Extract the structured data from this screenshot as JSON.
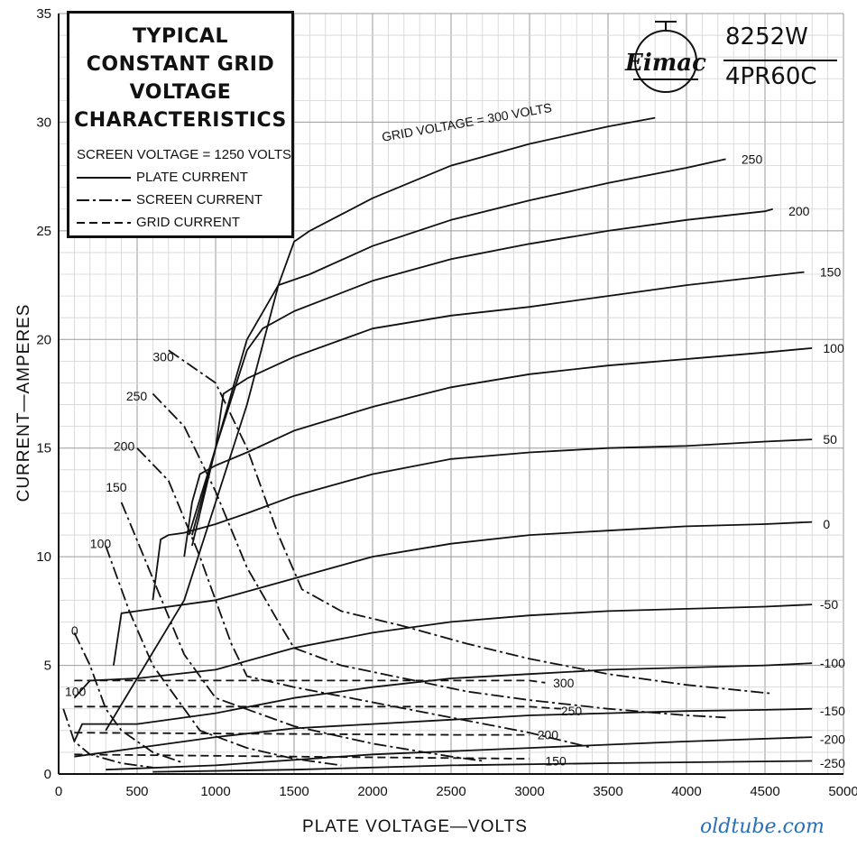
{
  "chart_data": {
    "type": "line",
    "title": "TYPICAL CONSTANT GRID VOLTAGE CHARACTERISTICS",
    "subtitle": "SCREEN VOLTAGE = 1250 VOLTS",
    "xlabel": "PLATE VOLTAGE—VOLTS",
    "ylabel": "CURRENT—AMPERES",
    "xlim": [
      0,
      5000
    ],
    "ylim": [
      0,
      35
    ],
    "x_ticks": [
      "0",
      "500",
      "1000",
      "1500",
      "2000",
      "2500",
      "3000",
      "3500",
      "4000",
      "4500",
      "5000"
    ],
    "y_ticks": [
      "0",
      "5",
      "10",
      "15",
      "20",
      "25",
      "30",
      "35"
    ],
    "grid": true,
    "legend_position": "top-left",
    "legend": [
      {
        "label": "PLATE CURRENT",
        "style": "solid"
      },
      {
        "label": "SCREEN CURRENT",
        "style": "dash-dot"
      },
      {
        "label": "GRID CURRENT",
        "style": "dashed"
      }
    ],
    "series": [
      {
        "name": "GRID VOLTAGE = 300 VOLTS",
        "kind": "plate",
        "grid_voltage": 300,
        "x": [
          300,
          800,
          1200,
          1400,
          1500,
          1600,
          2000,
          2500,
          3000,
          3500,
          3800
        ],
        "y": [
          2.0,
          8.0,
          17.0,
          22.5,
          24.5,
          25.0,
          26.5,
          28.0,
          29.0,
          29.8,
          30.2
        ]
      },
      {
        "name": "250",
        "kind": "plate",
        "grid_voltage": 250,
        "x": [
          850,
          1000,
          1200,
          1400,
          1600,
          2000,
          2500,
          3000,
          3500,
          4000,
          4250
        ],
        "y": [
          10.5,
          15.0,
          20.0,
          22.5,
          23.0,
          24.3,
          25.5,
          26.4,
          27.2,
          27.9,
          28.3
        ]
      },
      {
        "name": "200",
        "kind": "plate",
        "grid_voltage": 200,
        "x": [
          850,
          1000,
          1200,
          1300,
          1500,
          2000,
          2500,
          3000,
          3500,
          4000,
          4500,
          4550
        ],
        "y": [
          11.0,
          15.0,
          19.5,
          20.5,
          21.3,
          22.7,
          23.7,
          24.4,
          25.0,
          25.5,
          25.9,
          26.0
        ]
      },
      {
        "name": "150",
        "kind": "plate",
        "grid_voltage": 150,
        "x": [
          830,
          1000,
          1050,
          1200,
          1500,
          2000,
          2500,
          3000,
          3500,
          4000,
          4500,
          4750
        ],
        "y": [
          11.0,
          15.0,
          17.5,
          18.2,
          19.2,
          20.5,
          21.1,
          21.5,
          22.0,
          22.5,
          22.9,
          23.1
        ]
      },
      {
        "name": "100",
        "kind": "plate",
        "grid_voltage": 100,
        "x": [
          800,
          850,
          900,
          1000,
          1200,
          1500,
          2000,
          2500,
          3000,
          3500,
          4000,
          4500,
          4800
        ],
        "y": [
          10.0,
          12.5,
          13.8,
          14.2,
          14.8,
          15.8,
          16.9,
          17.8,
          18.4,
          18.8,
          19.1,
          19.4,
          19.6
        ]
      },
      {
        "name": "50",
        "kind": "plate",
        "grid_voltage": 50,
        "x": [
          600,
          650,
          700,
          800,
          1000,
          1200,
          1500,
          2000,
          2500,
          3000,
          3500,
          4000,
          4500,
          4800
        ],
        "y": [
          8.0,
          10.8,
          11.0,
          11.1,
          11.5,
          12.0,
          12.8,
          13.8,
          14.5,
          14.8,
          15.0,
          15.1,
          15.3,
          15.4
        ]
      },
      {
        "name": "0",
        "kind": "plate",
        "grid_voltage": 0,
        "x": [
          350,
          400,
          500,
          1000,
          1500,
          2000,
          2500,
          3000,
          3500,
          4000,
          4500,
          4800
        ],
        "y": [
          5.0,
          7.4,
          7.5,
          8.0,
          9.0,
          10.0,
          10.6,
          11.0,
          11.2,
          11.4,
          11.5,
          11.6
        ]
      },
      {
        "name": "-50",
        "kind": "plate",
        "grid_voltage": -50,
        "x": [
          100,
          200,
          500,
          1000,
          1500,
          2000,
          2500,
          3000,
          3500,
          4000,
          4500,
          4800
        ],
        "y": [
          3.5,
          4.3,
          4.4,
          4.8,
          5.8,
          6.5,
          7.0,
          7.3,
          7.5,
          7.6,
          7.7,
          7.8
        ]
      },
      {
        "name": "-100",
        "kind": "plate",
        "grid_voltage": -100,
        "x": [
          100,
          150,
          500,
          1000,
          1500,
          2000,
          2500,
          3000,
          3500,
          4000,
          4500,
          4800
        ],
        "y": [
          1.5,
          2.3,
          2.3,
          2.8,
          3.5,
          4.0,
          4.4,
          4.6,
          4.8,
          4.9,
          5.0,
          5.1
        ]
      },
      {
        "name": "-150",
        "kind": "plate",
        "grid_voltage": -150,
        "x": [
          100,
          500,
          1000,
          1500,
          2000,
          2500,
          3000,
          3500,
          4000,
          4500,
          4800
        ],
        "y": [
          0.8,
          1.2,
          1.7,
          2.1,
          2.3,
          2.5,
          2.7,
          2.8,
          2.9,
          2.95,
          3.0
        ]
      },
      {
        "name": "-200",
        "kind": "plate",
        "grid_voltage": -200,
        "x": [
          300,
          1000,
          2000,
          3000,
          4000,
          4800
        ],
        "y": [
          0.2,
          0.4,
          0.9,
          1.2,
          1.5,
          1.7
        ]
      },
      {
        "name": "-250",
        "kind": "plate",
        "grid_voltage": -250,
        "x": [
          600,
          1500,
          2500,
          3500,
          4800
        ],
        "y": [
          0.1,
          0.2,
          0.4,
          0.5,
          0.6
        ]
      },
      {
        "name": "300",
        "kind": "screen",
        "grid_voltage": 300,
        "x": [
          700,
          1000,
          1200,
          1400,
          1550,
          1800,
          2200,
          2600,
          3000,
          3500,
          4000,
          4550
        ],
        "y": [
          19.5,
          18.0,
          15.0,
          11.0,
          8.5,
          7.5,
          6.8,
          6.0,
          5.3,
          4.6,
          4.1,
          3.7
        ]
      },
      {
        "name": "250",
        "kind": "screen",
        "grid_voltage": 250,
        "x": [
          600,
          800,
          1000,
          1200,
          1400,
          1500,
          1800,
          2200,
          2600,
          3000,
          3500,
          4000,
          4250
        ],
        "y": [
          17.5,
          16.0,
          13.0,
          9.5,
          7.0,
          5.8,
          5.0,
          4.4,
          3.8,
          3.4,
          3.0,
          2.7,
          2.6
        ]
      },
      {
        "name": "200",
        "kind": "screen",
        "grid_voltage": 200,
        "x": [
          500,
          700,
          900,
          1100,
          1200,
          1500,
          2000,
          2500,
          3000,
          3400
        ],
        "y": [
          15.0,
          13.5,
          10.0,
          6.0,
          4.5,
          4.0,
          3.3,
          2.6,
          1.9,
          1.2
        ]
      },
      {
        "name": "150",
        "kind": "screen",
        "grid_voltage": 150,
        "x": [
          400,
          600,
          800,
          1000,
          1500,
          2000,
          2500,
          2700
        ],
        "y": [
          12.5,
          9.0,
          5.5,
          3.5,
          2.2,
          1.4,
          0.8,
          0.6
        ]
      },
      {
        "name": "100",
        "kind": "screen",
        "grid_voltage": 100,
        "x": [
          300,
          450,
          600,
          900,
          1200,
          1500,
          1800
        ],
        "y": [
          10.5,
          7.5,
          5.0,
          2.0,
          1.2,
          0.7,
          0.4
        ]
      },
      {
        "name": "0",
        "kind": "screen",
        "grid_voltage": 0,
        "x": [
          100,
          200,
          300,
          400,
          600,
          800
        ],
        "y": [
          6.5,
          5.0,
          3.0,
          2.0,
          1.0,
          0.5
        ]
      },
      {
        "name": "-100",
        "kind": "screen",
        "grid_voltage": -100,
        "x": [
          30,
          100,
          200,
          400,
          600
        ],
        "y": [
          3.0,
          1.5,
          0.9,
          0.5,
          0.3
        ]
      },
      {
        "name": "300",
        "kind": "grid",
        "grid_voltage": 300,
        "x": [
          100,
          3000,
          3100
        ],
        "y": [
          4.3,
          4.3,
          4.2
        ]
      },
      {
        "name": "250",
        "kind": "grid",
        "grid_voltage": 250,
        "x": [
          100,
          3000,
          3200
        ],
        "y": [
          3.1,
          3.1,
          3.0
        ]
      },
      {
        "name": "200",
        "kind": "grid",
        "grid_voltage": 200,
        "x": [
          100,
          2500,
          3000
        ],
        "y": [
          1.9,
          1.8,
          1.8
        ]
      },
      {
        "name": "150",
        "kind": "grid",
        "grid_voltage": 150,
        "x": [
          100,
          1500,
          3000
        ],
        "y": [
          0.9,
          0.8,
          0.7
        ]
      }
    ],
    "curve_labels": [
      {
        "text": "GRID VOLTAGE = 300 VOLTS",
        "x": 2600,
        "y": 30.0
      },
      {
        "text": "250",
        "x": 4350,
        "y": 28.3
      },
      {
        "text": "200",
        "x": 4650,
        "y": 25.9
      },
      {
        "text": "150",
        "x": 4850,
        "y": 23.1
      },
      {
        "text": "100",
        "x": 4870,
        "y": 19.6
      },
      {
        "text": "50",
        "x": 4870,
        "y": 15.4
      },
      {
        "text": "0",
        "x": 4870,
        "y": 11.5
      },
      {
        "text": "-50",
        "x": 4850,
        "y": 7.8
      },
      {
        "text": "-100",
        "x": 4850,
        "y": 5.1
      },
      {
        "text": "-150",
        "x": 4850,
        "y": 2.9
      },
      {
        "text": "-200",
        "x": 4850,
        "y": 1.6
      },
      {
        "text": "-250",
        "x": 4850,
        "y": 0.5
      },
      {
        "text": "300",
        "x": 600,
        "y": 19.2
      },
      {
        "text": "250",
        "x": 430,
        "y": 17.4
      },
      {
        "text": "200",
        "x": 350,
        "y": 15.1
      },
      {
        "text": "150",
        "x": 300,
        "y": 13.2
      },
      {
        "text": "100",
        "x": 200,
        "y": 10.6
      },
      {
        "text": "0",
        "x": 80,
        "y": 6.6
      },
      {
        "text": "100",
        "x": 40,
        "y": 3.8
      },
      {
        "text": "300",
        "x": 3150,
        "y": 4.2
      },
      {
        "text": "250",
        "x": 3200,
        "y": 2.9
      },
      {
        "text": "200",
        "x": 3050,
        "y": 1.8
      },
      {
        "text": "150",
        "x": 3100,
        "y": 0.6
      }
    ]
  },
  "branding": {
    "logo": "Eimac",
    "tube_type_1": "8252W",
    "tube_type_2": "4PR60C"
  },
  "watermark": "oldtube.com"
}
